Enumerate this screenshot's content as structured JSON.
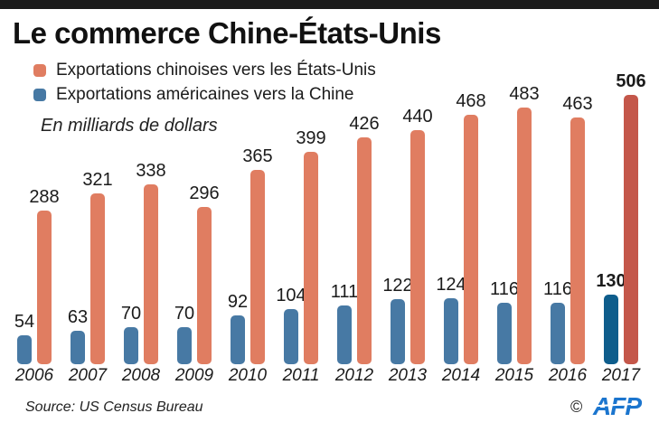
{
  "title": "Le commerce Chine-États-Unis",
  "legend": [
    {
      "label": "Exportations chinoises vers les États-Unis"
    },
    {
      "label": "Exportations américaines vers la Chine"
    }
  ],
  "unit_note": "En milliards de dollars",
  "footer": {
    "source": "Source: US Census Bureau",
    "copyright": "©",
    "logo": "AFP",
    "logo_color": "#1b75ce"
  },
  "colors": {
    "top_bar": "#1a1a1a",
    "text": "#1b1b1b"
  },
  "chart_data": {
    "type": "bar",
    "title": "Le commerce Chine-États-Unis",
    "subtitle": "En milliards de dollars",
    "categories": [
      "2006",
      "2007",
      "2008",
      "2009",
      "2010",
      "2011",
      "2012",
      "2013",
      "2014",
      "2015",
      "2016",
      "2017"
    ],
    "series": [
      {
        "name": "Exportations chinoises vers les États-Unis",
        "color": "#e07d61",
        "highlight_color": "#c4574a",
        "values": [
          288,
          321,
          338,
          296,
          365,
          399,
          426,
          440,
          468,
          483,
          463,
          506
        ]
      },
      {
        "name": "Exportations américaines vers la Chine",
        "color": "#4779a4",
        "highlight_color": "#0e5d8c",
        "values": [
          54,
          63,
          70,
          70,
          92,
          104,
          111,
          122,
          124,
          116,
          116,
          130
        ]
      }
    ],
    "highlight_index": 11,
    "ylim": [
      0,
      506
    ],
    "grid": false,
    "legend_position": "top-left",
    "value_labels": true
  }
}
